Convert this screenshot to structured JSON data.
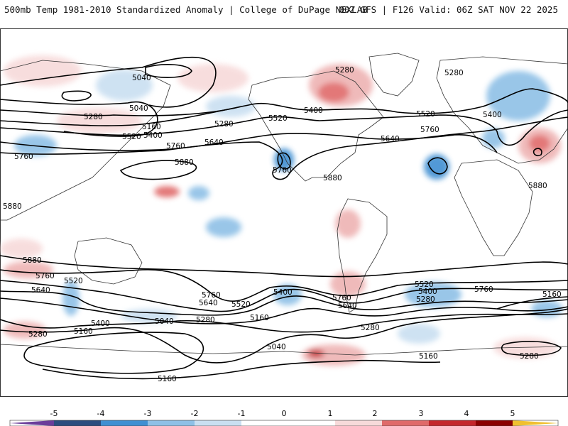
{
  "header": {
    "title_left": "500mb Temp 1981-2010 Standardized Anomaly | College of DuPage NEXLAB",
    "title_right": "00Z GFS | F126 Valid: 06Z SAT NOV 22 2025"
  },
  "colors": {
    "neg5": "#6a3d9a",
    "neg4": "#2b4c7e",
    "neg3": "#3f8fd2",
    "neg2": "#8ec0e6",
    "neg1": "#c9dff1",
    "zero": "#ffffff",
    "pos1": "#f7dada",
    "pos2": "#eeb3b3",
    "pos3": "#e06a6a",
    "pos4": "#c4262b",
    "pos5": "#8b0000",
    "max": "#f0c030",
    "contour": "#000000",
    "coast": "#333333"
  },
  "legend": {
    "ticks": [
      "-5",
      "-4",
      "-3",
      "-2",
      "-1",
      "0",
      "1",
      "2",
      "3",
      "4",
      "5"
    ]
  },
  "contour_labels": [
    {
      "id": "l1",
      "text": "5040"
    },
    {
      "id": "l2",
      "text": "5040"
    },
    {
      "id": "l3",
      "text": "5280"
    },
    {
      "id": "l4",
      "text": "5160"
    },
    {
      "id": "l5",
      "text": "5520"
    },
    {
      "id": "l6",
      "text": "5400"
    },
    {
      "id": "l7",
      "text": "5280"
    },
    {
      "id": "l8",
      "text": "5760"
    },
    {
      "id": "l9",
      "text": "5640"
    },
    {
      "id": "l10",
      "text": "5760"
    },
    {
      "id": "l11",
      "text": "5880"
    },
    {
      "id": "l12",
      "text": "5520"
    },
    {
      "id": "l13",
      "text": "5400"
    },
    {
      "id": "l14",
      "text": "5280"
    },
    {
      "id": "l15",
      "text": "5520"
    },
    {
      "id": "l16",
      "text": "5400"
    },
    {
      "id": "l17",
      "text": "5280"
    },
    {
      "id": "l18",
      "text": "5640"
    },
    {
      "id": "l19",
      "text": "5760"
    },
    {
      "id": "l20",
      "text": "5760"
    },
    {
      "id": "l21",
      "text": "5880"
    },
    {
      "id": "l22",
      "text": "5880"
    },
    {
      "id": "l23",
      "text": "5880"
    },
    {
      "id": "l24",
      "text": "5880"
    },
    {
      "id": "l25",
      "text": "5760"
    },
    {
      "id": "l26",
      "text": "5640"
    },
    {
      "id": "l27",
      "text": "5520"
    },
    {
      "id": "l28",
      "text": "5400"
    },
    {
      "id": "l29",
      "text": "5280"
    },
    {
      "id": "l30",
      "text": "5160"
    },
    {
      "id": "l31",
      "text": "5760"
    },
    {
      "id": "l32",
      "text": "5640"
    },
    {
      "id": "l33",
      "text": "5520"
    },
    {
      "id": "l34",
      "text": "5040"
    },
    {
      "id": "l35",
      "text": "5280"
    },
    {
      "id": "l36",
      "text": "5160"
    },
    {
      "id": "l37",
      "text": "5040"
    },
    {
      "id": "l38",
      "text": "5160"
    },
    {
      "id": "l39",
      "text": "5400"
    },
    {
      "id": "l40",
      "text": "5760"
    },
    {
      "id": "l41",
      "text": "5640"
    },
    {
      "id": "l42",
      "text": "5280"
    },
    {
      "id": "l43",
      "text": "5160"
    },
    {
      "id": "l44",
      "text": "5520"
    },
    {
      "id": "l45",
      "text": "5400"
    },
    {
      "id": "l46",
      "text": "5280"
    },
    {
      "id": "l47",
      "text": "5760"
    },
    {
      "id": "l48",
      "text": "5160"
    },
    {
      "id": "l49",
      "text": "5280"
    }
  ]
}
